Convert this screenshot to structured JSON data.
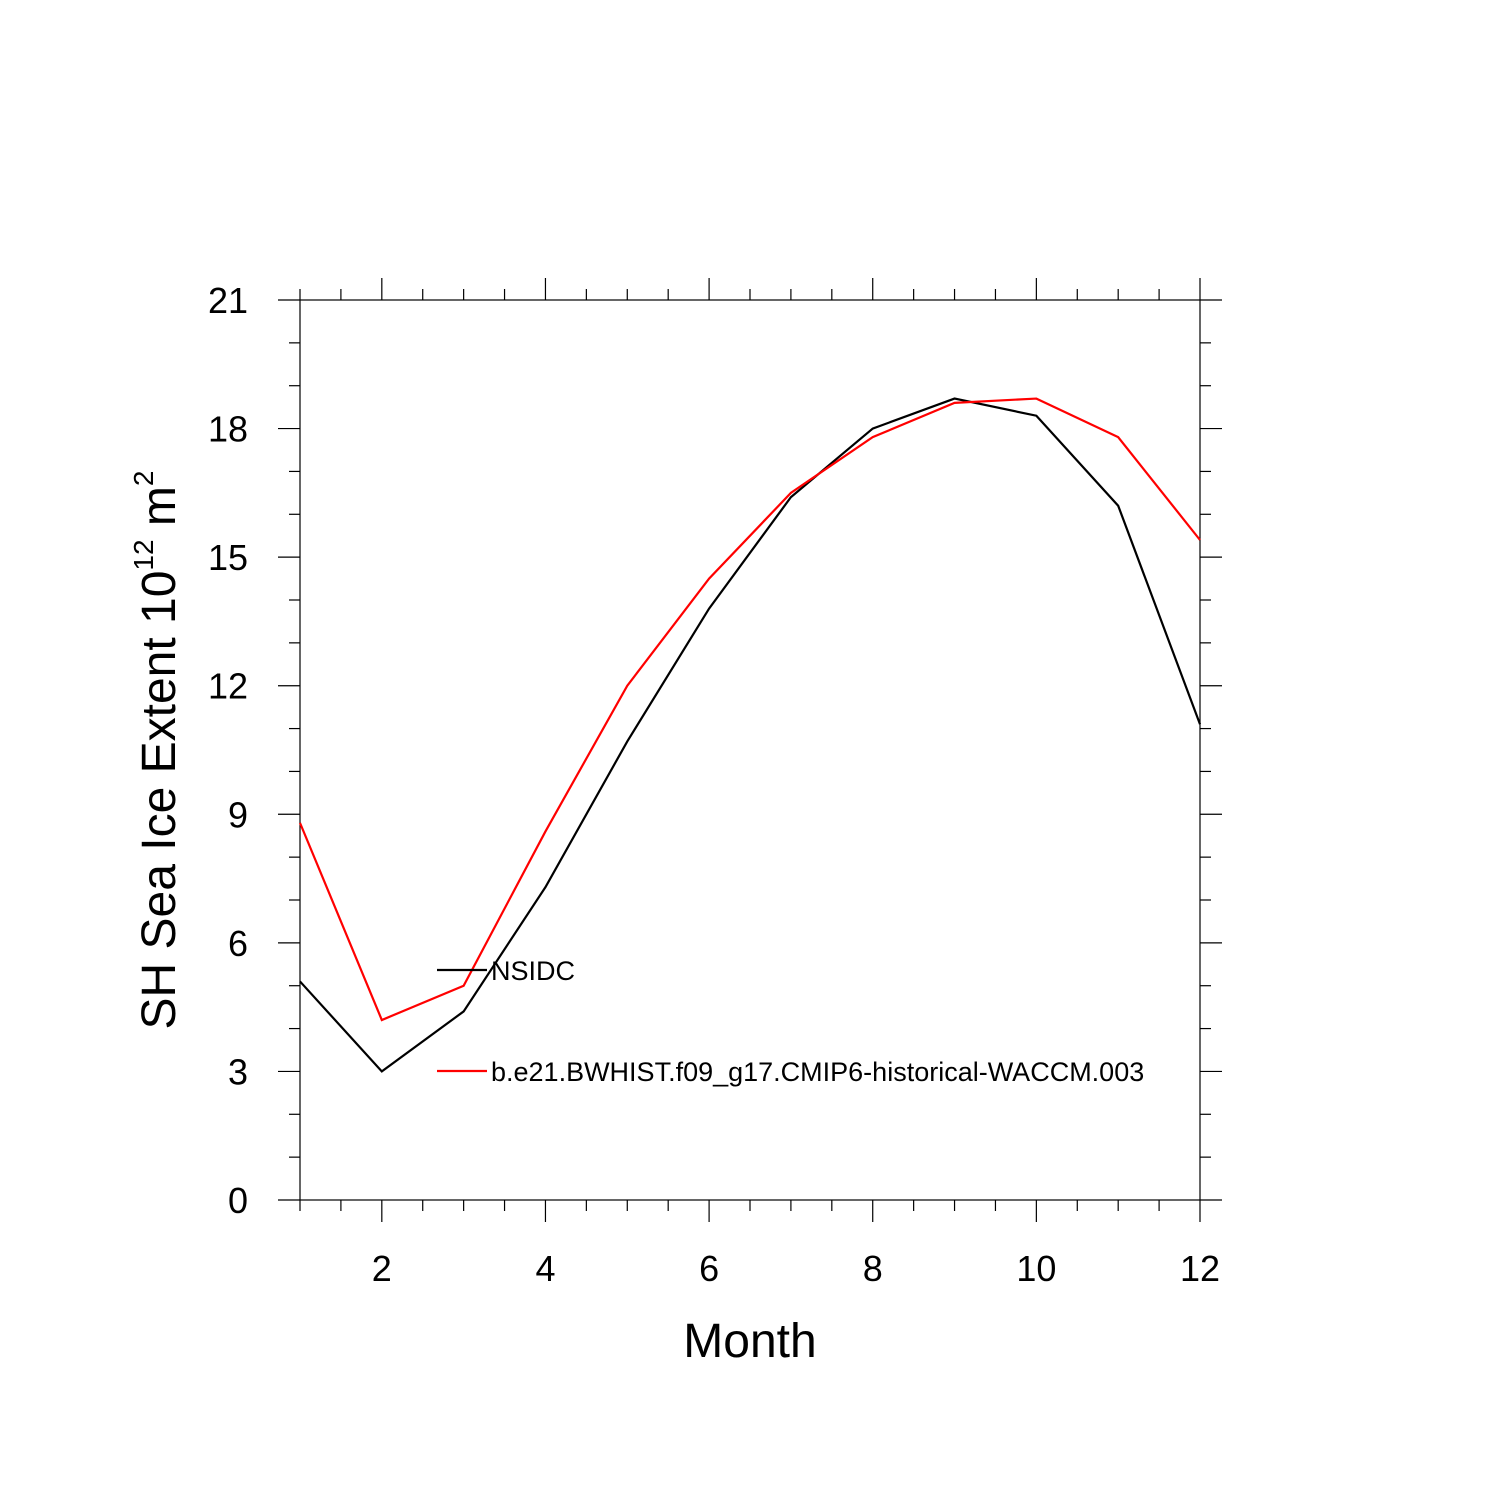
{
  "chart_data": {
    "type": "line",
    "title": "",
    "xlabel": "Month",
    "ylabel": {
      "text": "SH Sea Ice Extent 10",
      "exponent": "12",
      "unit": " m",
      "unit_exponent": "2"
    },
    "xlim": [
      1,
      12
    ],
    "ylim": [
      0,
      21
    ],
    "x_ticks": [
      2,
      4,
      6,
      8,
      10,
      12
    ],
    "y_ticks": [
      0,
      3,
      6,
      9,
      12,
      15,
      18,
      21
    ],
    "x_tick_labels": [
      "2",
      "4",
      "6",
      "8",
      "10",
      "12"
    ],
    "y_tick_labels": [
      "0",
      "3",
      "6",
      "9",
      "12",
      "15",
      "18",
      "21"
    ],
    "grid": false,
    "legend_position": "inside-lower-left",
    "x": [
      1,
      2,
      3,
      4,
      5,
      6,
      7,
      8,
      9,
      10,
      11,
      12
    ],
    "series": [
      {
        "name": "NSIDC",
        "color": "#000000",
        "values": [
          5.1,
          3.0,
          4.4,
          7.3,
          10.7,
          13.8,
          16.4,
          18.0,
          18.7,
          18.3,
          16.2,
          11.1
        ]
      },
      {
        "name": "b.e21.BWHIST.f09_g17.CMIP6-historical-WACCM.003",
        "color": "#ff0000",
        "values": [
          8.8,
          4.2,
          5.0,
          8.6,
          12.0,
          14.5,
          16.5,
          17.8,
          18.6,
          18.7,
          17.8,
          15.4
        ]
      }
    ]
  }
}
